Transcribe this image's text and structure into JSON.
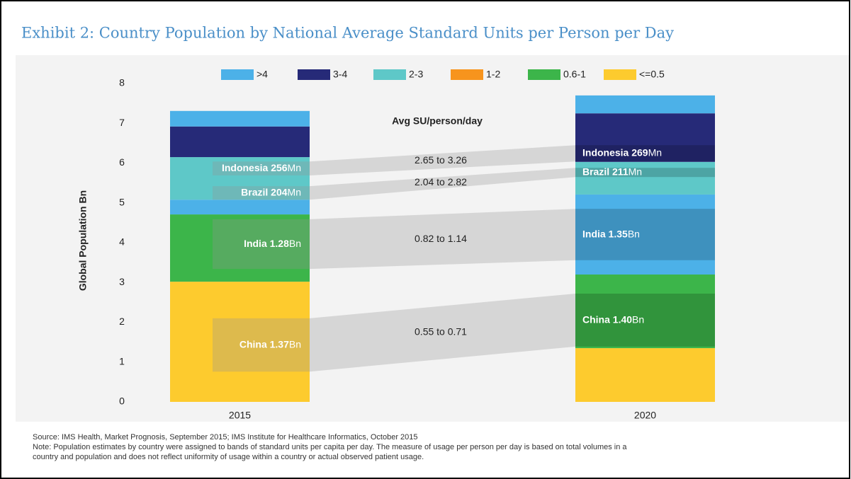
{
  "chart_data": {
    "type": "bar",
    "title": "Exhibit 2: Country Population by National Average Standard Units per Person per Day",
    "ylabel": "Global Population Bn",
    "annotation": "Avg SU/person/day",
    "categories": [
      "2015",
      "2020"
    ],
    "ylim": [
      0,
      8
    ],
    "yticks": [
      0,
      1,
      2,
      3,
      4,
      5,
      6,
      7,
      8
    ],
    "legend": [
      {
        "name": ">4",
        "color": "#4cb1e8"
      },
      {
        "name": "3-4",
        "color": "#262a78"
      },
      {
        "name": "2-3",
        "color": "#5ec8c8"
      },
      {
        "name": "1-2",
        "color": "#f7941d"
      },
      {
        "name": "0.6-1",
        "color": "#3cb54a"
      },
      {
        "name": "<=0.5",
        "color": "#fdcb2e"
      }
    ],
    "stacks": [
      [
        {
          "color": "#fdcb2e",
          "value": 3.02
        },
        {
          "color": "#3cb54a",
          "value": 1.69
        },
        {
          "color": "#4cb1e8",
          "value": 0.37
        },
        {
          "color": "#5ec8c8",
          "value": 1.07
        },
        {
          "color": "#262a78",
          "value": 0.77
        },
        {
          "color": "#4cb1e8",
          "value": 0.39
        }
      ],
      [
        {
          "color": "#fdcb2e",
          "value": 1.35
        },
        {
          "color": "#3cb54a",
          "value": 1.85
        },
        {
          "color": "#4cb1e8",
          "value": 2.01
        },
        {
          "color": "#5ec8c8",
          "value": 0.82
        },
        {
          "color": "#262a78",
          "value": 1.22
        },
        {
          "color": "#4cb1e8",
          "value": 0.45
        }
      ]
    ],
    "flows": [
      {
        "range": "2.65 to 3.26",
        "from": [
          5.69,
          6.04
        ],
        "to": [
          6.04,
          6.45
        ],
        "labels": [
          {
            "name": "Indonesia 256",
            "unit": "Mn"
          },
          {
            "name": "Indonesia 269",
            "unit": "Mn"
          }
        ]
      },
      {
        "range": "2.04 to 2.82",
        "from": [
          5.08,
          5.42
        ],
        "to": [
          5.65,
          5.88
        ],
        "labels": [
          {
            "name": "Brazil 204",
            "unit": "Mn"
          },
          {
            "name": "Brazil 211",
            "unit": "Mn"
          }
        ]
      },
      {
        "range": "0.82 to 1.14",
        "from": [
          3.34,
          4.59
        ],
        "to": [
          3.56,
          4.85
        ],
        "labels": [
          {
            "name": "India 1.28",
            "unit": "Bn"
          },
          {
            "name": "India 1.35",
            "unit": "Bn"
          }
        ]
      },
      {
        "range": "0.55 to 0.71",
        "from": [
          0.76,
          2.1
        ],
        "to": [
          1.39,
          2.72
        ],
        "labels": [
          {
            "name": "China 1.37",
            "unit": "Bn"
          },
          {
            "name": "China 1.40",
            "unit": "Bn"
          }
        ]
      }
    ],
    "notes": [
      "Source: IMS Health, Market Prognosis, September 2015; IMS Institute for Healthcare Informatics, October 2015",
      "Note: Population estimates by country were assigned to bands of standard units per capita per day. The measure of usage per person per day is based on total volumes in a",
      "country and population and does not reflect uniformity of usage within a country or actual observed patient usage."
    ]
  }
}
